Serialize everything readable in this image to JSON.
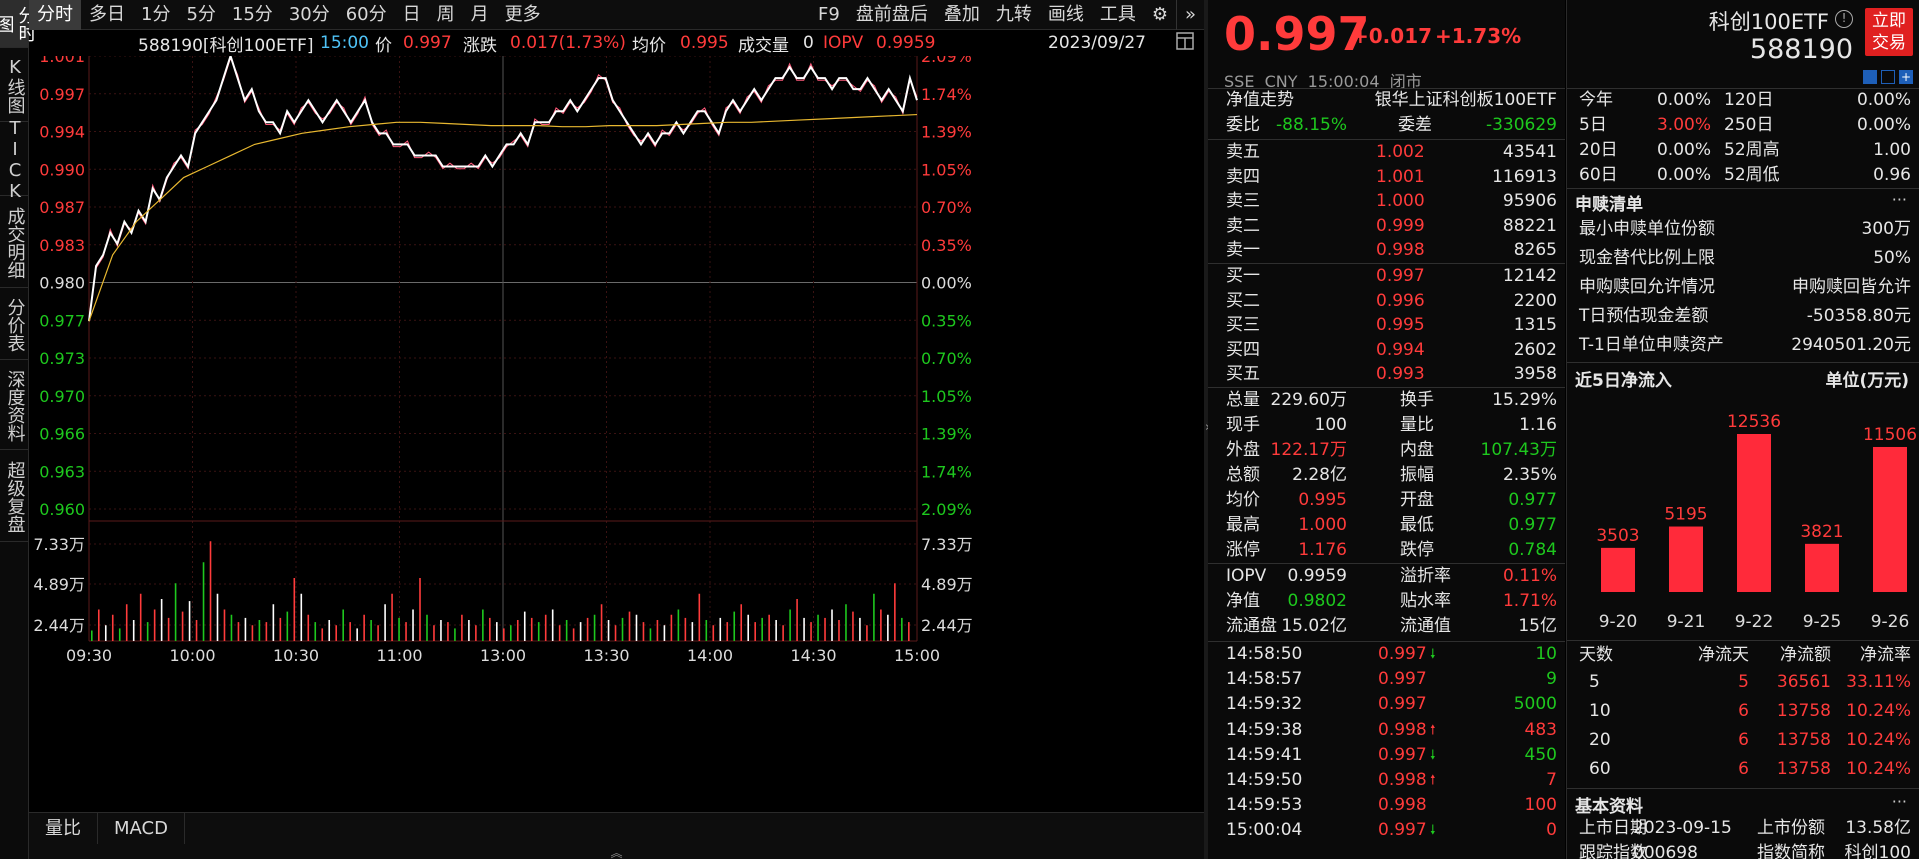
{
  "left_rail": [
    "分时图",
    "K线图",
    "TICK",
    "成交明细",
    "分价表",
    "深度资料",
    "超级复盘"
  ],
  "toolbar": {
    "left": [
      "分时",
      "多日",
      "1分",
      "5分",
      "15分",
      "30分",
      "60分",
      "日",
      "周",
      "月",
      "更多"
    ],
    "right": [
      "F9",
      "盘前盘后",
      "叠加",
      "九转",
      "画线",
      "工具"
    ]
  },
  "info_bar": {
    "code": "588190[科创100ETF]",
    "time": "15:00",
    "price_label": "价",
    "price": "0.997",
    "change_label": "涨跌",
    "change": "0.017(1.73%)",
    "avg_label": "均价",
    "avg": "0.995",
    "volume_label": "成交量",
    "volume": "0",
    "iopv_label": "IOPV",
    "iopv": "0.9959",
    "date": "2023/09/27"
  },
  "chart": {
    "price_axis": [
      {
        "v": "1.001",
        "c": "red"
      },
      {
        "v": "0.997",
        "c": "red"
      },
      {
        "v": "0.994",
        "c": "red"
      },
      {
        "v": "0.990",
        "c": "red"
      },
      {
        "v": "0.987",
        "c": "red"
      },
      {
        "v": "0.983",
        "c": "red"
      },
      {
        "v": "0.980",
        "c": "white"
      },
      {
        "v": "0.977",
        "c": "green"
      },
      {
        "v": "0.973",
        "c": "green"
      },
      {
        "v": "0.970",
        "c": "green"
      },
      {
        "v": "0.966",
        "c": "green"
      },
      {
        "v": "0.963",
        "c": "green"
      },
      {
        "v": "0.960",
        "c": "green"
      }
    ],
    "pct_axis": [
      {
        "v": "2.09%",
        "c": "red"
      },
      {
        "v": "1.74%",
        "c": "red"
      },
      {
        "v": "1.39%",
        "c": "red"
      },
      {
        "v": "1.05%",
        "c": "red"
      },
      {
        "v": "0.70%",
        "c": "red"
      },
      {
        "v": "0.35%",
        "c": "red"
      },
      {
        "v": "0.00%",
        "c": "white"
      },
      {
        "v": "0.35%",
        "c": "green"
      },
      {
        "v": "0.70%",
        "c": "green"
      },
      {
        "v": "1.05%",
        "c": "green"
      },
      {
        "v": "1.39%",
        "c": "green"
      },
      {
        "v": "1.74%",
        "c": "green"
      },
      {
        "v": "2.09%",
        "c": "green"
      }
    ],
    "vol_axis": [
      "7.33万",
      "4.89万",
      "2.44万"
    ],
    "time_axis": [
      "09:30",
      "10:00",
      "10:30",
      "11:00",
      "13:00",
      "13:30",
      "14:00",
      "14:30",
      "15:00"
    ],
    "price_series": [
      0.977,
      0.982,
      0.983,
      0.985,
      0.984,
      0.986,
      0.985,
      0.987,
      0.986,
      0.989,
      0.988,
      0.99,
      0.991,
      0.992,
      0.991,
      0.994,
      0.995,
      0.996,
      0.997,
      0.999,
      1.001,
      0.999,
      0.997,
      0.998,
      0.996,
      0.995,
      0.995,
      0.994,
      0.996,
      0.995,
      0.996,
      0.997,
      0.996,
      0.995,
      0.996,
      0.997,
      0.996,
      0.995,
      0.996,
      0.997,
      0.995,
      0.994,
      0.994,
      0.993,
      0.993,
      0.993,
      0.992,
      0.992,
      0.992,
      0.992,
      0.991,
      0.991,
      0.991,
      0.991,
      0.991,
      0.991,
      0.992,
      0.991,
      0.992,
      0.993,
      0.993,
      0.994,
      0.993,
      0.995,
      0.995,
      0.995,
      0.996,
      0.996,
      0.997,
      0.996,
      0.997,
      0.998,
      0.999,
      0.999,
      0.997,
      0.996,
      0.995,
      0.994,
      0.993,
      0.994,
      0.993,
      0.994,
      0.994,
      0.995,
      0.994,
      0.995,
      0.996,
      0.996,
      0.995,
      0.994,
      0.996,
      0.997,
      0.996,
      0.997,
      0.998,
      0.997,
      0.998,
      0.999,
      0.999,
      1.0,
      0.999,
      0.999,
      1.0,
      0.999,
      0.999,
      0.998,
      0.999,
      0.999,
      0.998,
      0.998,
      0.999,
      0.998,
      0.997,
      0.998,
      0.997,
      0.996,
      0.999,
      0.997
    ],
    "avg_series": [
      0.977,
      0.983,
      0.986,
      0.988,
      0.99,
      0.991,
      0.992,
      0.993,
      0.9935,
      0.994,
      0.9943,
      0.9946,
      0.9948,
      0.995,
      0.995,
      0.9949,
      0.9948,
      0.9947,
      0.9947,
      0.9947,
      0.9946,
      0.9946,
      0.9947,
      0.9947,
      0.9947,
      0.9948,
      0.9949,
      0.995,
      0.995,
      0.9951,
      0.9952,
      0.9953,
      0.9954,
      0.9955,
      0.9956,
      0.9957
    ],
    "volume_series": [
      10,
      30,
      15,
      25,
      12,
      35,
      20,
      45,
      18,
      30,
      40,
      22,
      55,
      28,
      38,
      20,
      75,
      95,
      45,
      30,
      25,
      18,
      22,
      15,
      20,
      18,
      35,
      22,
      28,
      60,
      45,
      25,
      18,
      12,
      20,
      15,
      30,
      18,
      12,
      25,
      20,
      15,
      35,
      45,
      22,
      18,
      30,
      60,
      25,
      15,
      20,
      18,
      12,
      25,
      20,
      15,
      30,
      22,
      18,
      12,
      15,
      20,
      28,
      22,
      18,
      25,
      30,
      15,
      20,
      12,
      18,
      22,
      25,
      35,
      20,
      15,
      22,
      28,
      25,
      18,
      12,
      20,
      15,
      25,
      30,
      22,
      18,
      45,
      20,
      15,
      22,
      18,
      28,
      35,
      25,
      18,
      22,
      25,
      20,
      15,
      30,
      40,
      22,
      18,
      25,
      22,
      30,
      20,
      35,
      28,
      22,
      15,
      45,
      30,
      25,
      55,
      22,
      18
    ]
  },
  "bottom_tabs": [
    "量比",
    "MACD"
  ],
  "quote": {
    "price": "0.997",
    "change": "+0.017",
    "pct": "+1.73%",
    "name": "科创100ETF",
    "code": "588190",
    "trade_btn": [
      "立即",
      "交易"
    ],
    "meta": "SSE  CNY  15:00:04  闭市",
    "nav_label": "净值走势",
    "index_name": "银华上证科创板100ETF",
    "webi": {
      "label": "委比",
      "value": "-88.15%",
      "label2": "委差",
      "value2": "-330629"
    }
  },
  "asks": [
    {
      "label": "卖五",
      "price": "1.002",
      "vol": "43541"
    },
    {
      "label": "卖四",
      "price": "1.001",
      "vol": "116913"
    },
    {
      "label": "卖三",
      "price": "1.000",
      "vol": "95906"
    },
    {
      "label": "卖二",
      "price": "0.999",
      "vol": "88221"
    },
    {
      "label": "卖一",
      "price": "0.998",
      "vol": "8265"
    }
  ],
  "bids": [
    {
      "label": "买一",
      "price": "0.997",
      "vol": "12142"
    },
    {
      "label": "买二",
      "price": "0.996",
      "vol": "2200"
    },
    {
      "label": "买三",
      "price": "0.995",
      "vol": "1315"
    },
    {
      "label": "买四",
      "price": "0.994",
      "vol": "2602"
    },
    {
      "label": "买五",
      "price": "0.993",
      "vol": "3958"
    }
  ],
  "stats": [
    {
      "l1": "总量",
      "v1": "229.60万",
      "c1": "white",
      "l2": "换手",
      "v2": "15.29%",
      "c2": "white"
    },
    {
      "l1": "现手",
      "v1": "100",
      "c1": "white",
      "l2": "量比",
      "v2": "1.16",
      "c2": "white"
    },
    {
      "l1": "外盘",
      "v1": "122.17万",
      "c1": "red",
      "l2": "内盘",
      "v2": "107.43万",
      "c2": "green"
    },
    {
      "l1": "总额",
      "v1": "2.28亿",
      "c1": "white",
      "l2": "振幅",
      "v2": "2.35%",
      "c2": "white"
    },
    {
      "l1": "均价",
      "v1": "0.995",
      "c1": "red",
      "l2": "开盘",
      "v2": "0.977",
      "c2": "green"
    },
    {
      "l1": "最高",
      "v1": "1.000",
      "c1": "red",
      "l2": "最低",
      "v2": "0.977",
      "c2": "green"
    },
    {
      "l1": "涨停",
      "v1": "1.176",
      "c1": "red",
      "l2": "跌停",
      "v2": "0.784",
      "c2": "green"
    }
  ],
  "stats2": [
    {
      "l1": "IOPV",
      "v1": "0.9959",
      "c1": "white",
      "l2": "溢折率",
      "v2": "0.11%",
      "c2": "red"
    },
    {
      "l1": "净值",
      "v1": "0.9802",
      "c1": "green",
      "l2": "贴水率",
      "v2": "1.71%",
      "c2": "red"
    },
    {
      "l1": "流通盘",
      "v1": "15.02亿",
      "c1": "white",
      "l2": "流通值",
      "v2": "15亿",
      "c2": "white"
    }
  ],
  "ticks": [
    {
      "time": "14:58:50",
      "price": "0.997",
      "arrow": "down",
      "vol": "10",
      "vc": "green"
    },
    {
      "time": "14:58:57",
      "price": "0.997",
      "arrow": "",
      "vol": "9",
      "vc": "green"
    },
    {
      "time": "14:59:32",
      "price": "0.997",
      "arrow": "",
      "vol": "5000",
      "vc": "green"
    },
    {
      "time": "14:59:38",
      "price": "0.998",
      "arrow": "up",
      "vol": "483",
      "vc": "red"
    },
    {
      "time": "14:59:41",
      "price": "0.997",
      "arrow": "down",
      "vol": "450",
      "vc": "green"
    },
    {
      "time": "14:59:50",
      "price": "0.998",
      "arrow": "up",
      "vol": "7",
      "vc": "red"
    },
    {
      "time": "14:59:53",
      "price": "0.998",
      "arrow": "",
      "vol": "100",
      "vc": "red"
    },
    {
      "time": "15:00:04",
      "price": "0.997",
      "arrow": "down",
      "vol": "0",
      "vc": "red"
    }
  ],
  "perf": [
    {
      "l1": "今年",
      "v1": "0.00%",
      "c1": "white",
      "l2": "120日",
      "v2": "0.00%",
      "c2": "white"
    },
    {
      "l1": "5日",
      "v1": "3.00%",
      "c1": "red",
      "l2": "250日",
      "v2": "0.00%",
      "c2": "white"
    },
    {
      "l1": "20日",
      "v1": "0.00%",
      "c1": "white",
      "l2": "52周高",
      "v2": "1.00",
      "c2": "white"
    },
    {
      "l1": "60日",
      "v1": "0.00%",
      "c1": "white",
      "l2": "52周低",
      "v2": "0.96",
      "c2": "white"
    }
  ],
  "subscribe": {
    "title": "申赎清单",
    "more": "···",
    "rows": [
      {
        "label": "最小申赎单位份额",
        "value": "300万"
      },
      {
        "label": "现金替代比例上限",
        "value": "50%"
      },
      {
        "label": "申购赎回允许情况",
        "value": "申购赎回皆允许"
      },
      {
        "label": "T日预估现金差额",
        "value": "-50358.80元"
      },
      {
        "label": "T-1日单位申赎资产",
        "value": "2940501.20元"
      }
    ]
  },
  "netflow": {
    "title": "近5日净流入",
    "unit": "单位(万元)",
    "chart_data": {
      "type": "bar",
      "categories": [
        "9-20",
        "9-21",
        "9-22",
        "9-25",
        "9-26"
      ],
      "values": [
        3503,
        5195,
        12536,
        3821,
        11506
      ],
      "ylim": [
        0,
        12536
      ]
    }
  },
  "flow_table": {
    "headers": [
      "天数",
      "净流天",
      "净流额",
      "净流率"
    ],
    "rows": [
      [
        "5",
        "5",
        "36561",
        "33.11%"
      ],
      [
        "10",
        "6",
        "13758",
        "10.24%"
      ],
      [
        "20",
        "6",
        "13758",
        "10.24%"
      ],
      [
        "60",
        "6",
        "13758",
        "10.24%"
      ]
    ]
  },
  "basic": {
    "title": "基本资料",
    "more": "···",
    "rows": [
      {
        "l1": "上市日期",
        "v1": "2023-09-15",
        "l2": "上市份额",
        "v2": "13.58亿"
      },
      {
        "l1": "跟踪指数",
        "v1": "000698",
        "l2": "指数简称",
        "v2": "科创100"
      }
    ]
  },
  "colors": {
    "up": "#ff3b3b",
    "down": "#1ec81e",
    "price_line": "#ffffff",
    "avg_line": "#e8b830",
    "iopv_line": "#ff5a7a",
    "grid": "#3a1010"
  }
}
